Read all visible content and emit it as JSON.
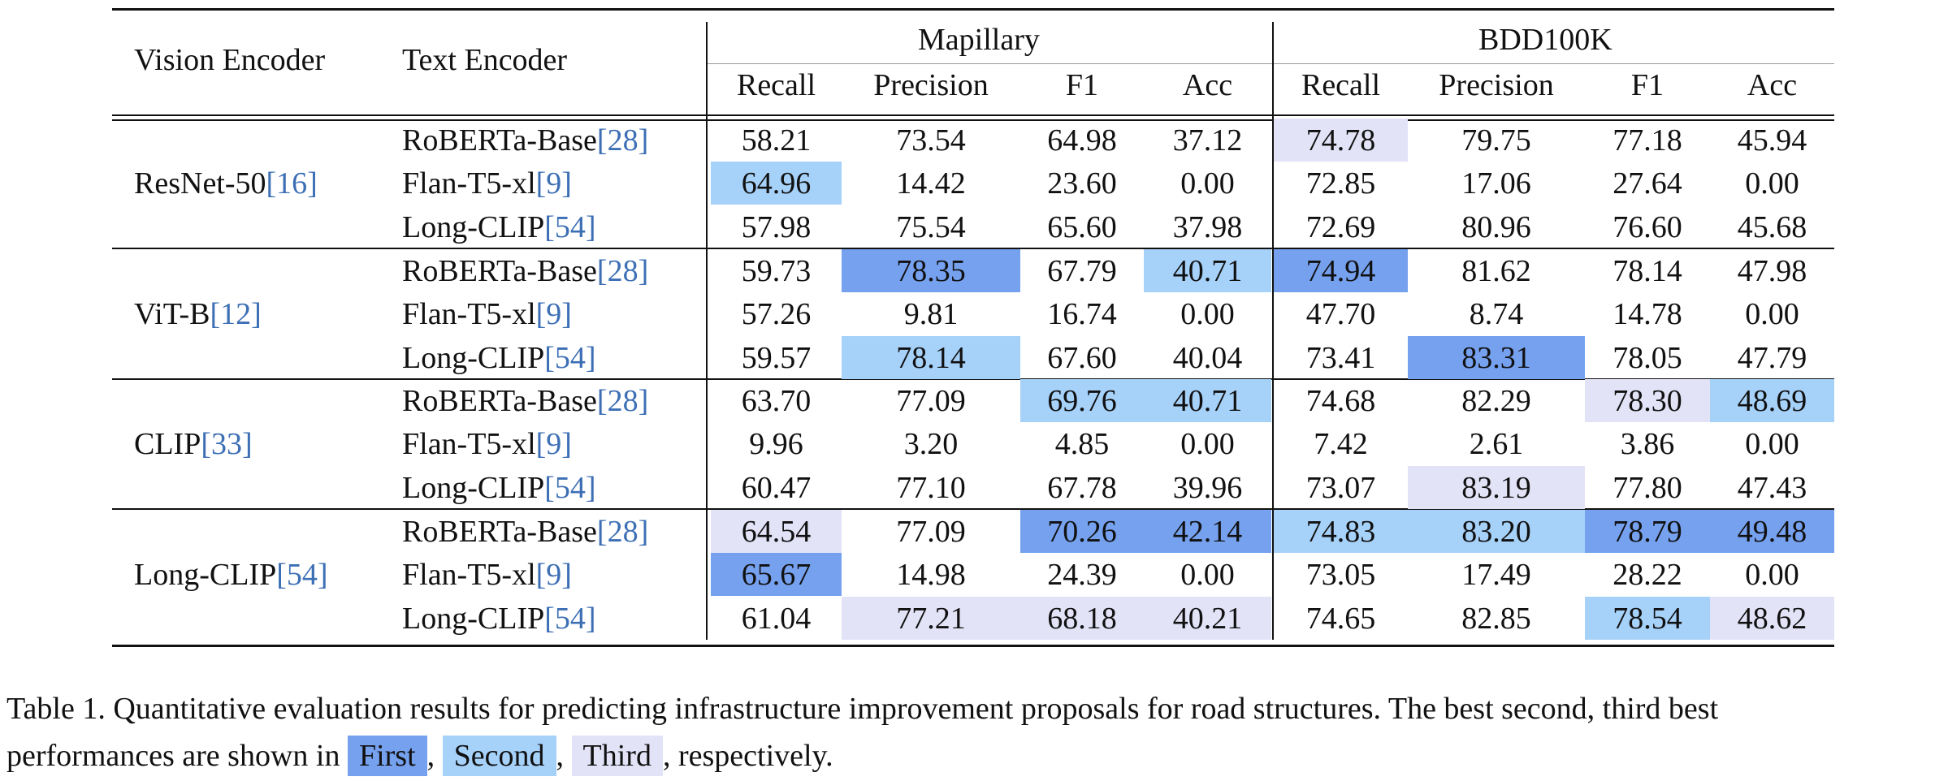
{
  "colors": {
    "first": "#76a1ef",
    "second": "#a6d1f9",
    "third": "#e3e3f8",
    "link": "#3d6fb5"
  },
  "header": {
    "vision_encoder": "Vision Encoder",
    "text_encoder": "Text Encoder",
    "groups": [
      "Mapillary",
      "BDD100K"
    ],
    "metrics": [
      "Recall",
      "Precision",
      "F1",
      "Acc",
      "Recall",
      "Precision",
      "F1",
      "Acc"
    ]
  },
  "table": [
    {
      "vision": "ResNet-50",
      "vref": "[16]",
      "rows": [
        {
          "text": "RoBERTa-Base",
          "tref": "[28]",
          "vals": [
            "58.21",
            "73.54",
            "64.98",
            "37.12",
            "74.78",
            "79.75",
            "77.18",
            "45.94"
          ],
          "ranks": [
            0,
            0,
            0,
            0,
            3,
            0,
            0,
            0
          ]
        },
        {
          "text": "Flan-T5-xl",
          "tref": "[9]",
          "vals": [
            "64.96",
            "14.42",
            "23.60",
            "0.00",
            "72.85",
            "17.06",
            "27.64",
            "0.00"
          ],
          "ranks": [
            2,
            0,
            0,
            0,
            0,
            0,
            0,
            0
          ]
        },
        {
          "text": "Long-CLIP",
          "tref": "[54]",
          "vals": [
            "57.98",
            "75.54",
            "65.60",
            "37.98",
            "72.69",
            "80.96",
            "76.60",
            "45.68"
          ],
          "ranks": [
            0,
            0,
            0,
            0,
            0,
            0,
            0,
            0
          ]
        }
      ]
    },
    {
      "vision": "ViT-B",
      "vref": "[12]",
      "rows": [
        {
          "text": "RoBERTa-Base",
          "tref": "[28]",
          "vals": [
            "59.73",
            "78.35",
            "67.79",
            "40.71",
            "74.94",
            "81.62",
            "78.14",
            "47.98"
          ],
          "ranks": [
            0,
            1,
            0,
            2,
            1,
            0,
            0,
            0
          ]
        },
        {
          "text": "Flan-T5-xl",
          "tref": "[9]",
          "vals": [
            "57.26",
            "9.81",
            "16.74",
            "0.00",
            "47.70",
            "8.74",
            "14.78",
            "0.00"
          ],
          "ranks": [
            0,
            0,
            0,
            0,
            0,
            0,
            0,
            0
          ]
        },
        {
          "text": "Long-CLIP",
          "tref": "[54]",
          "vals": [
            "59.57",
            "78.14",
            "67.60",
            "40.04",
            "73.41",
            "83.31",
            "78.05",
            "47.79"
          ],
          "ranks": [
            0,
            2,
            0,
            0,
            0,
            1,
            0,
            0
          ]
        }
      ]
    },
    {
      "vision": "CLIP",
      "vref": "[33]",
      "rows": [
        {
          "text": "RoBERTa-Base",
          "tref": "[28]",
          "vals": [
            "63.70",
            "77.09",
            "69.76",
            "40.71",
            "74.68",
            "82.29",
            "78.30",
            "48.69"
          ],
          "ranks": [
            0,
            0,
            2,
            2,
            0,
            0,
            3,
            2
          ]
        },
        {
          "text": "Flan-T5-xl",
          "tref": "[9]",
          "vals": [
            "9.96",
            "3.20",
            "4.85",
            "0.00",
            "7.42",
            "2.61",
            "3.86",
            "0.00"
          ],
          "ranks": [
            0,
            0,
            0,
            0,
            0,
            0,
            0,
            0
          ]
        },
        {
          "text": "Long-CLIP",
          "tref": "[54]",
          "vals": [
            "60.47",
            "77.10",
            "67.78",
            "39.96",
            "73.07",
            "83.19",
            "77.80",
            "47.43"
          ],
          "ranks": [
            0,
            0,
            0,
            0,
            0,
            3,
            0,
            0
          ]
        }
      ]
    },
    {
      "vision": "Long-CLIP",
      "vref": "[54]",
      "rows": [
        {
          "text": "RoBERTa-Base",
          "tref": "[28]",
          "vals": [
            "64.54",
            "77.09",
            "70.26",
            "42.14",
            "74.83",
            "83.20",
            "78.79",
            "49.48"
          ],
          "ranks": [
            3,
            0,
            1,
            1,
            2,
            2,
            1,
            1
          ]
        },
        {
          "text": "Flan-T5-xl",
          "tref": "[9]",
          "vals": [
            "65.67",
            "14.98",
            "24.39",
            "0.00",
            "73.05",
            "17.49",
            "28.22",
            "0.00"
          ],
          "ranks": [
            1,
            0,
            0,
            0,
            0,
            0,
            0,
            0
          ]
        },
        {
          "text": "Long-CLIP",
          "tref": "[54]",
          "vals": [
            "61.04",
            "77.21",
            "68.18",
            "40.21",
            "74.65",
            "82.85",
            "78.54",
            "48.62"
          ],
          "ranks": [
            0,
            3,
            3,
            3,
            0,
            0,
            2,
            3
          ]
        }
      ]
    }
  ],
  "caption": {
    "line1": "Table 1. Quantitative evaluation results for predicting infrastructure improvement proposals for road structures. The best second, third best",
    "line2_prefix": "performances are shown in",
    "first_label": "First",
    "second_label": "Second",
    "third_label": "Third",
    "sep": ",",
    "suffix": ", respectively."
  }
}
